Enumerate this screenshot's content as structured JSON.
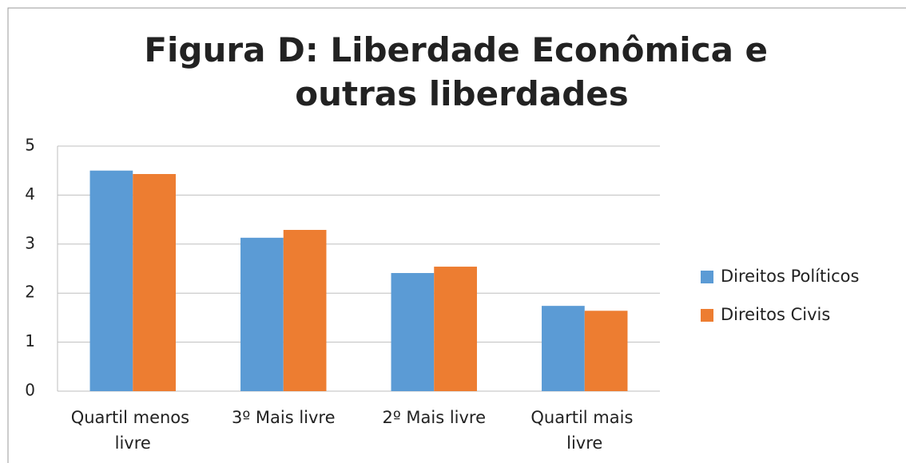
{
  "chart_data": {
    "type": "bar",
    "title": "Figura D: Liberdade Econômica e outras liberdades",
    "categories": [
      "Quartil menos livre",
      "3º Mais livre",
      "2º Mais livre",
      "Quartil mais livre"
    ],
    "series": [
      {
        "name": "Direitos Políticos",
        "color": "#5b9bd5",
        "values": [
          4.5,
          3.13,
          2.41,
          1.74
        ]
      },
      {
        "name": "Direitos Civis",
        "color": "#ed7d31",
        "values": [
          4.43,
          3.29,
          2.54,
          1.64
        ]
      }
    ],
    "ylim": [
      0,
      5
    ],
    "yticks": [
      0,
      1,
      2,
      3,
      4,
      5
    ],
    "grid": true,
    "legend": "right"
  }
}
